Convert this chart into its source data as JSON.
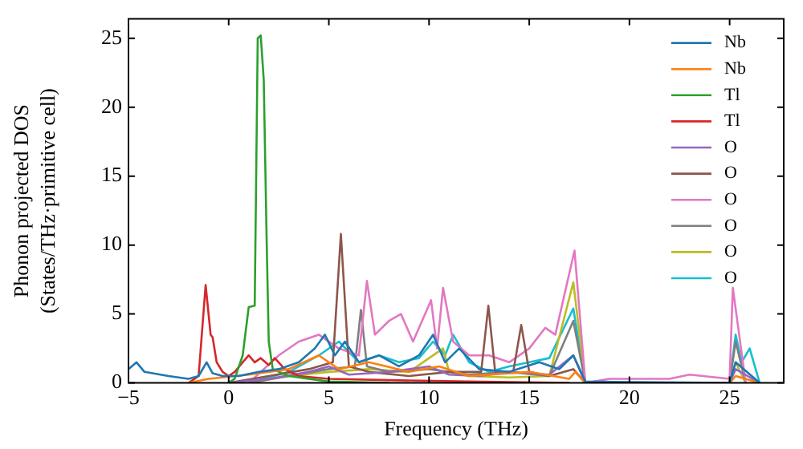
{
  "chart_data": {
    "type": "line",
    "xlabel": "Frequency (THz)",
    "ylabel": "Phonon projected DOS\n(States/THz·primitive cell)",
    "xlim": [
      -5,
      27.7
    ],
    "ylim": [
      0,
      26.4
    ],
    "xticks": [
      -5,
      0,
      5,
      10,
      15,
      20,
      25
    ],
    "yticks": [
      0,
      5,
      10,
      15,
      20,
      25
    ],
    "grid": false,
    "legend": "top right",
    "marker": "none",
    "line_style": "solid",
    "series": [
      {
        "name": "Nb",
        "color": "#1f77b4",
        "x": [
          -5,
          -4.6,
          -4.2,
          -3,
          -2,
          -1.5,
          -1.1,
          -0.8,
          -0.3,
          0.5,
          1.5,
          2.5,
          3.5,
          4.3,
          4.8,
          5.3,
          5.8,
          6.5,
          7.5,
          8.5,
          9.5,
          10.2,
          10.8,
          11.5,
          12.5,
          14,
          15.5,
          16.5,
          17.2,
          17.8,
          25,
          25.3,
          26.5
        ],
        "values": [
          1.0,
          1.5,
          0.8,
          0.5,
          0.3,
          0.5,
          1.5,
          0.7,
          0.5,
          0.5,
          0.8,
          1.0,
          1.5,
          2.5,
          3.5,
          2.0,
          3.0,
          1.5,
          2.0,
          1.2,
          2.0,
          3.5,
          1.5,
          2.5,
          1.0,
          0.8,
          1.5,
          1.0,
          2.0,
          0.1,
          0,
          1.5,
          0
        ]
      },
      {
        "name": "Nb",
        "color": "#ff7f0e",
        "x": [
          -2,
          -1,
          1,
          3,
          4.5,
          5.5,
          7,
          9,
          10.5,
          12,
          15,
          17,
          17.3,
          17.8,
          25,
          25.3,
          26.5
        ],
        "values": [
          0,
          0.3,
          0.6,
          1.0,
          2.0,
          1.0,
          1.5,
          0.8,
          1.2,
          0.5,
          0.8,
          0.3,
          0.8,
          0,
          0,
          0.5,
          0
        ]
      },
      {
        "name": "Tl",
        "color": "#2ca02c",
        "x": [
          0,
          0.3,
          0.7,
          1.0,
          1.3,
          1.45,
          1.6,
          1.75,
          1.9,
          2.0,
          2.2,
          3,
          5,
          8
        ],
        "values": [
          0,
          0.3,
          2.0,
          5.5,
          5.6,
          25,
          25.2,
          22,
          10,
          3,
          1,
          0.5,
          0.1,
          0
        ]
      },
      {
        "name": "Tl",
        "color": "#d62728",
        "x": [
          -2,
          -1.5,
          -1.15,
          -0.9,
          -0.8,
          -0.6,
          -0.3,
          0,
          0.3,
          0.7,
          1.0,
          1.3,
          1.6,
          2,
          2.3,
          2.8,
          3.5,
          5,
          8,
          12,
          17
        ],
        "values": [
          0,
          0.5,
          7.1,
          3.5,
          3.3,
          1.5,
          0.8,
          0.5,
          0.8,
          1.5,
          2.0,
          1.5,
          1.8,
          1.3,
          1.8,
          1.0,
          0.5,
          0.3,
          0.2,
          0.1,
          0
        ]
      },
      {
        "name": "O",
        "color": "#9467bd",
        "x": [
          0,
          2,
          4,
          5,
          6,
          8,
          10,
          11,
          12.5,
          14,
          16,
          17.2,
          17.8,
          25,
          25.3,
          26.5
        ],
        "values": [
          0,
          0.3,
          0.8,
          1.2,
          0.6,
          0.8,
          1.2,
          0.6,
          0.5,
          0.8,
          0.6,
          2.0,
          0,
          0,
          1.0,
          0
        ]
      },
      {
        "name": "O",
        "color": "#8c564b",
        "x": [
          0,
          2,
          4,
          5.2,
          5.6,
          6.0,
          7,
          9,
          11,
          12.6,
          12.96,
          13.3,
          14.2,
          14.6,
          15,
          16,
          17.2,
          17.8
        ],
        "values": [
          0,
          0.5,
          1.0,
          1.5,
          10.8,
          1.2,
          0.8,
          0.5,
          0.8,
          0.8,
          5.6,
          0.8,
          0.8,
          4.2,
          0.8,
          0.5,
          1.0,
          0
        ]
      },
      {
        "name": "O",
        "color": "#e377c2",
        "x": [
          1,
          2.5,
          3.5,
          4.5,
          5.5,
          6.5,
          6.9,
          7.3,
          8,
          8.6,
          9.2,
          10.1,
          10.4,
          10.7,
          11.2,
          12,
          13,
          14,
          15,
          15.8,
          16.3,
          17.26,
          17.8,
          19,
          22,
          23,
          25,
          25.16,
          25.8
        ],
        "values": [
          0,
          2.0,
          3.0,
          3.5,
          2.5,
          2.0,
          7.4,
          3.5,
          4.5,
          5.0,
          3.0,
          6.0,
          2.5,
          6.9,
          3.0,
          2.0,
          2.0,
          1.5,
          2.5,
          4.0,
          3.5,
          9.6,
          0,
          0.3,
          0.3,
          0.6,
          0.3,
          6.9,
          0
        ]
      },
      {
        "name": "O",
        "color": "#7f7f7f",
        "x": [
          1,
          3,
          5,
          6.3,
          6.6,
          6.9,
          8,
          10,
          12,
          14,
          16,
          17.2,
          17.8,
          25,
          25.3,
          25.8
        ],
        "values": [
          0,
          0.5,
          1.0,
          1.2,
          5.3,
          1.2,
          0.8,
          1.0,
          0.6,
          0.8,
          0.5,
          4.5,
          0,
          0,
          3.0,
          0
        ]
      },
      {
        "name": "O",
        "color": "#bcbd22",
        "x": [
          1,
          3,
          5,
          7,
          9,
          10.7,
          11,
          12,
          14,
          16,
          17.2,
          17.8,
          25,
          25.3,
          25.8
        ],
        "values": [
          0,
          0.5,
          0.8,
          1.0,
          0.8,
          2.5,
          0.8,
          0.5,
          0.4,
          0.5,
          7.3,
          0,
          0,
          1.5,
          0
        ]
      },
      {
        "name": "O",
        "color": "#17becf",
        "x": [
          1,
          3,
          4.5,
          5.5,
          6.5,
          7.5,
          8.5,
          9.5,
          10.2,
          10.8,
          11.2,
          12,
          13,
          14,
          15,
          16,
          17.2,
          17.8,
          25,
          25.3,
          25.6,
          26,
          26.5
        ],
        "values": [
          0,
          0.8,
          2.0,
          3.0,
          1.5,
          2.0,
          1.5,
          1.8,
          3.0,
          2.0,
          3.5,
          1.5,
          0.8,
          1.2,
          1.5,
          1.8,
          5.4,
          0,
          0,
          3.5,
          1.5,
          2.5,
          0
        ]
      }
    ]
  }
}
